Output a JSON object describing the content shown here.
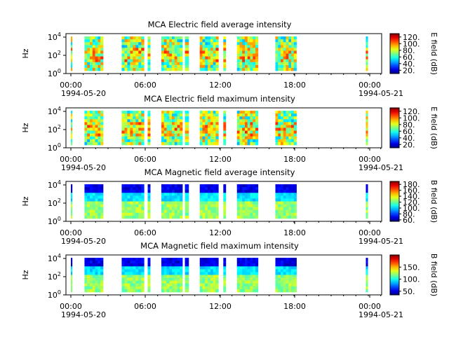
{
  "chart_data": [
    {
      "type": "heatmap",
      "title": "MCA  Electric field average intensity",
      "ylabel": "Hz",
      "colorbar_label": "E field (dB)",
      "colorbar_ticks": [
        "120.",
        "100.",
        "80.",
        "60.",
        "40.",
        "20."
      ],
      "colorbar_range": [
        10,
        130
      ],
      "y_ticks": [
        "10^4",
        "10^2",
        "10^0"
      ],
      "ylim": [
        1,
        30000
      ],
      "x_ticks": [
        "00:00",
        "06:00",
        "12:00",
        "18:00",
        "00:00"
      ],
      "x_dates": [
        "1994-05-20",
        "1994-05-21"
      ]
    },
    {
      "type": "heatmap",
      "title": "MCA  Electric field maximum intensity",
      "ylabel": "Hz",
      "colorbar_label": "E field (dB)",
      "colorbar_ticks": [
        "120.",
        "100.",
        "80.",
        "60.",
        "40.",
        "20."
      ],
      "colorbar_range": [
        10,
        130
      ],
      "y_ticks": [
        "10^4",
        "10^2",
        "10^0"
      ],
      "ylim": [
        1,
        30000
      ],
      "x_ticks": [
        "00:00",
        "06:00",
        "12:00",
        "18:00",
        "00:00"
      ],
      "x_dates": [
        "1994-05-20",
        "1994-05-21"
      ]
    },
    {
      "type": "heatmap",
      "title": "MCA  Magnetic field average intensity",
      "ylabel": "Hz",
      "colorbar_label": "B field (dB)",
      "colorbar_ticks": [
        "180.",
        "160.",
        "140.",
        "120.",
        "100.",
        "80.",
        "60."
      ],
      "colorbar_range": [
        55,
        190
      ],
      "y_ticks": [
        "10^4",
        "10^2",
        "10^0"
      ],
      "ylim": [
        1,
        30000
      ],
      "x_ticks": [
        "00:00",
        "06:00",
        "12:00",
        "18:00",
        "00:00"
      ],
      "x_dates": [
        "1994-05-20",
        "1994-05-21"
      ]
    },
    {
      "type": "heatmap",
      "title": "MCA  Magnetic field maximum intensity",
      "ylabel": "Hz",
      "colorbar_label": "B field (dB)",
      "colorbar_ticks": [
        "150.",
        "100.",
        "50."
      ],
      "colorbar_range": [
        35,
        200
      ],
      "y_ticks": [
        "10^4",
        "10^2",
        "10^0"
      ],
      "ylim": [
        1,
        30000
      ],
      "x_ticks": [
        "00:00",
        "06:00",
        "12:00",
        "18:00",
        "00:00"
      ],
      "x_dates": [
        "1994-05-20",
        "1994-05-21"
      ]
    }
  ]
}
